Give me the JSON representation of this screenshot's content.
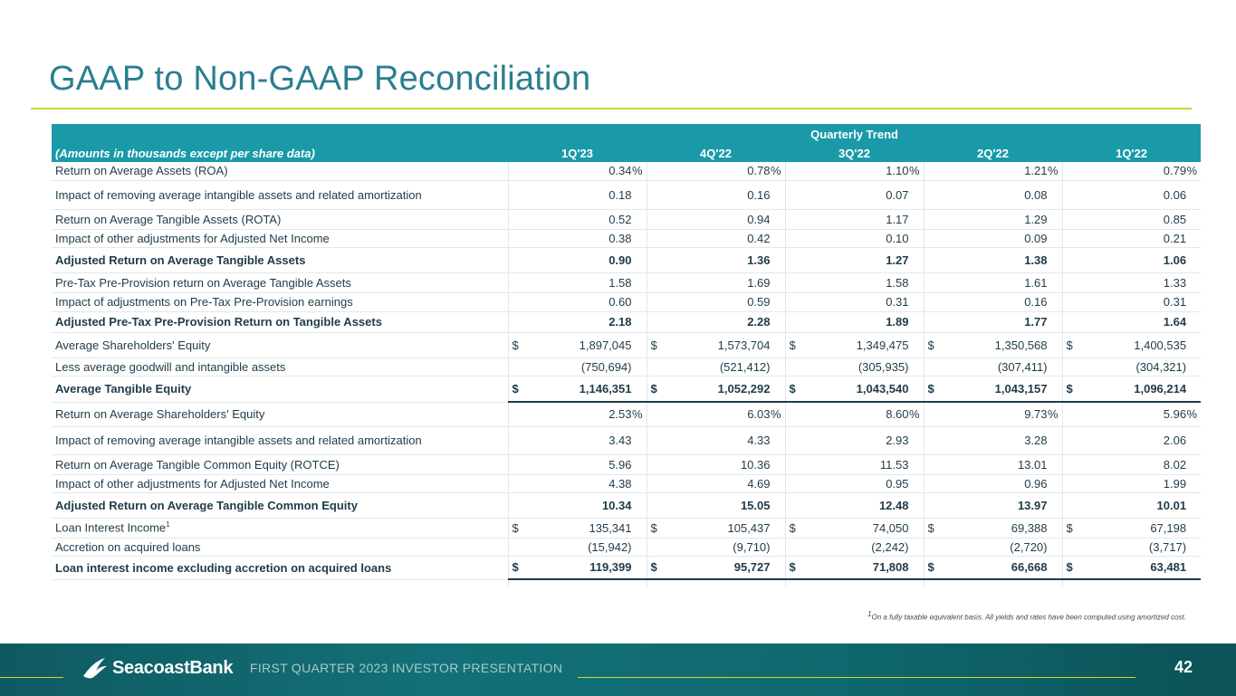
{
  "title": "GAAP to Non-GAAP Reconciliation",
  "table": {
    "group_header": "Quarterly Trend",
    "label_header": "(Amounts in thousands except per share data)",
    "periods": [
      "1Q'23",
      "4Q'22",
      "3Q'22",
      "2Q'22",
      "1Q'22"
    ],
    "rows": [
      {
        "label": "Return on Average Assets (ROA)",
        "values": [
          "0.34",
          "0.78",
          "1.10",
          "1.21",
          "0.79"
        ]
      },
      {
        "label": "Impact of removing average intangible assets and related amortization",
        "values": [
          "0.18",
          "0.16",
          "0.07",
          "0.08",
          "0.06"
        ]
      },
      {
        "label": "Return on Average Tangible Assets (ROTA)",
        "values": [
          "0.52",
          "0.94",
          "1.17",
          "1.29",
          "0.85"
        ]
      },
      {
        "label": "Impact of other adjustments for Adjusted Net Income",
        "values": [
          "0.38",
          "0.42",
          "0.10",
          "0.09",
          "0.21"
        ]
      },
      {
        "label": "Adjusted Return on Average Tangible Assets",
        "values": [
          "0.90",
          "1.36",
          "1.27",
          "1.38",
          "1.06"
        ]
      },
      {
        "label": "Pre-Tax Pre-Provision return on Average Tangible Assets",
        "values": [
          "1.58",
          "1.69",
          "1.58",
          "1.61",
          "1.33"
        ]
      },
      {
        "label": "Impact of adjustments on Pre-Tax Pre-Provision earnings",
        "values": [
          "0.60",
          "0.59",
          "0.31",
          "0.16",
          "0.31"
        ]
      },
      {
        "label": "Adjusted Pre-Tax Pre-Provision Return on Tangible Assets",
        "values": [
          "2.18",
          "2.28",
          "1.89",
          "1.77",
          "1.64"
        ]
      },
      {
        "label": "Average Shareholders' Equity",
        "values": [
          "1,897,045",
          "1,573,704",
          "1,349,475",
          "1,350,568",
          "1,400,535"
        ]
      },
      {
        "label": "Less average goodwill and intangible assets",
        "values": [
          "(750,694)",
          "(521,412)",
          "(305,935)",
          "(307,411)",
          "(304,321)"
        ]
      },
      {
        "label": "Average Tangible Equity",
        "values": [
          "1,146,351",
          "1,052,292",
          "1,043,540",
          "1,043,157",
          "1,096,214"
        ]
      },
      {
        "label": "Return on Average Shareholders' Equity",
        "values": [
          "2.53",
          "6.03",
          "8.60",
          "9.73",
          "5.96"
        ]
      },
      {
        "label": "Impact of removing average intangible assets and related amortization",
        "values": [
          "3.43",
          "4.33",
          "2.93",
          "3.28",
          "2.06"
        ]
      },
      {
        "label": "Return on Average Tangible Common Equity (ROTCE)",
        "values": [
          "5.96",
          "10.36",
          "11.53",
          "13.01",
          "8.02"
        ]
      },
      {
        "label": "Impact of other adjustments for Adjusted Net Income",
        "values": [
          "4.38",
          "4.69",
          "0.95",
          "0.96",
          "1.99"
        ]
      },
      {
        "label": "Adjusted Return on Average Tangible Common Equity",
        "values": [
          "10.34",
          "15.05",
          "12.48",
          "13.97",
          "10.01"
        ]
      },
      {
        "label": "Loan Interest Income",
        "sup": "1",
        "values": [
          "135,341",
          "105,437",
          "74,050",
          "69,388",
          "67,198"
        ]
      },
      {
        "label": "Accretion on acquired loans",
        "values": [
          "(15,942)",
          "(9,710)",
          "(2,242)",
          "(2,720)",
          "(3,717)"
        ]
      },
      {
        "label": "Loan interest income excluding accretion on acquired loans",
        "values": [
          "119,399",
          "95,727",
          "71,808",
          "66,668",
          "63,481"
        ]
      }
    ],
    "currency_symbol": "$",
    "percent_symbol": "%"
  },
  "footnote": {
    "sup": "1",
    "text": "On a fully taxable equivalent basis. All yields and rates have been computed using amortized cost."
  },
  "footer": {
    "logo_text": "SeacoastBank",
    "presentation_title": "FIRST QUARTER 2023 INVESTOR PRESENTATION",
    "page_number": "42"
  }
}
